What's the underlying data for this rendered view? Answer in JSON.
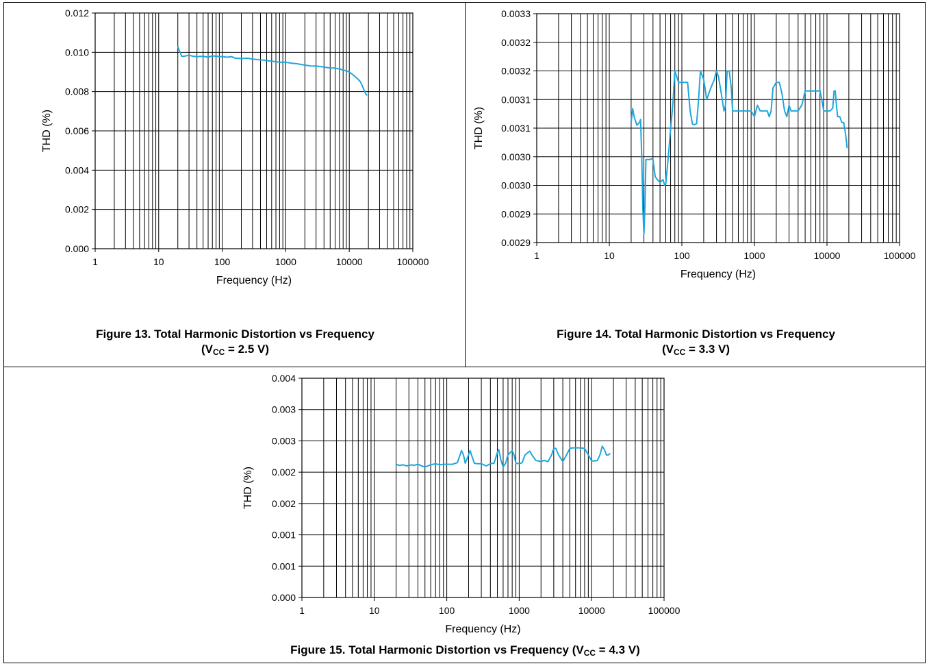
{
  "chart_data": [
    {
      "type": "line",
      "caption": {
        "prefix": "Figure 13. Total Harmonic Distortion vs Frequency",
        "vsym": "V",
        "vsub": "CC",
        "vval": " = 2.5 V"
      },
      "xlabel": "Frequency (Hz)",
      "ylabel": "THD (%)",
      "xscale": "log",
      "xlim": [
        1,
        100000
      ],
      "ylim": [
        0,
        0.012
      ],
      "xticks": [
        1,
        10,
        100,
        1000,
        10000,
        100000
      ],
      "xtick_labels": [
        "1",
        "10",
        "100",
        "1000",
        "10000",
        "100000"
      ],
      "ytick_labels": [
        "0.000",
        "0.002",
        "0.004",
        "0.006",
        "0.008",
        "0.010",
        "0.012"
      ],
      "grid": true,
      "line_color": "#1fa6dd",
      "series": [
        {
          "x": [
            20,
            21,
            23,
            25,
            30,
            35,
            40,
            50,
            60,
            70,
            80,
            90,
            100,
            120,
            140,
            160,
            200,
            250,
            300,
            400,
            500,
            600,
            800,
            1000,
            1200,
            1500,
            2000,
            2500,
            3000,
            4000,
            5000,
            6000,
            7000,
            8000,
            9000,
            10000,
            11000,
            12000,
            13000,
            14000,
            15000,
            16000,
            17000,
            18000,
            19000
          ],
          "y": [
            0.0103,
            0.0101,
            0.0098,
            0.0098,
            0.00985,
            0.0098,
            0.00978,
            0.0098,
            0.00975,
            0.00982,
            0.0098,
            0.00978,
            0.00978,
            0.00975,
            0.00978,
            0.0097,
            0.00968,
            0.0097,
            0.00965,
            0.00962,
            0.00958,
            0.00955,
            0.0095,
            0.0095,
            0.00945,
            0.00942,
            0.00935,
            0.0093,
            0.0093,
            0.00925,
            0.0092,
            0.0092,
            0.00915,
            0.0091,
            0.00905,
            0.009,
            0.0089,
            0.0088,
            0.0087,
            0.0086,
            0.0085,
            0.0083,
            0.0081,
            0.0079,
            0.0078
          ]
        }
      ]
    },
    {
      "type": "line",
      "caption": {
        "prefix": "Figure 14. Total Harmonic Distortion vs Frequency",
        "vsym": "V",
        "vsub": "CC",
        "vval": " = 3.3 V"
      },
      "xlabel": "Frequency (Hz)",
      "ylabel": "THD (%)",
      "xscale": "log",
      "xlim": [
        1,
        100000
      ],
      "ylim": [
        0.0029,
        0.0033
      ],
      "xticks": [
        1,
        10,
        100,
        1000,
        10000,
        100000
      ],
      "xtick_labels": [
        "1",
        "10",
        "100",
        "1000",
        "10000",
        "100000"
      ],
      "ytick_labels": [
        "0.0029",
        "0.0029",
        "0.0030",
        "0.0030",
        "0.0031",
        "0.0031",
        "0.0032",
        "0.0032",
        "0.0033"
      ],
      "grid": true,
      "line_color": "#1fa6dd",
      "series": [
        {
          "x": [
            20,
            21,
            22,
            24,
            26,
            27,
            28,
            29,
            30,
            31,
            32,
            35,
            38,
            40,
            43,
            46,
            50,
            55,
            58,
            60,
            65,
            70,
            75,
            80,
            85,
            90,
            100,
            120,
            130,
            140,
            150,
            160,
            170,
            180,
            200,
            220,
            250,
            280,
            300,
            320,
            350,
            380,
            400,
            420,
            450,
            480,
            500,
            520,
            550,
            600,
            700,
            800,
            900,
            1000,
            1100,
            1200,
            1400,
            1500,
            1600,
            1700,
            1800,
            2000,
            2200,
            2400,
            2600,
            2800,
            3000,
            3200,
            3500,
            4000,
            4500,
            5000,
            5500,
            6000,
            7000,
            8000,
            8500,
            9000,
            10000,
            11000,
            12000,
            12500,
            13000,
            13500,
            14000,
            15000,
            16000,
            17000,
            18000,
            19000
          ],
          "y": [
            0.00311,
            0.003134,
            0.00312,
            0.003105,
            0.00311,
            0.003115,
            0.00305,
            0.00296,
            0.002915,
            0.002965,
            0.003045,
            0.003045,
            0.003046,
            0.003045,
            0.003015,
            0.00301,
            0.003005,
            0.00301,
            0.003,
            0.003002,
            0.00305,
            0.0031,
            0.00314,
            0.0032,
            0.00319,
            0.00318,
            0.00318,
            0.00318,
            0.00313,
            0.003107,
            0.003106,
            0.003108,
            0.00315,
            0.0032,
            0.003185,
            0.00315,
            0.00317,
            0.003185,
            0.0032,
            0.00319,
            0.00316,
            0.00313,
            0.00314,
            0.0032,
            0.0032,
            0.00317,
            0.00313,
            0.00313,
            0.00313,
            0.00313,
            0.00313,
            0.00313,
            0.00313,
            0.00312,
            0.00314,
            0.00313,
            0.00313,
            0.00313,
            0.00312,
            0.00313,
            0.00317,
            0.00318,
            0.00318,
            0.00316,
            0.00313,
            0.00312,
            0.00314,
            0.00313,
            0.00313,
            0.00313,
            0.00314,
            0.003165,
            0.003165,
            0.003165,
            0.003165,
            0.003165,
            0.00315,
            0.00313,
            0.00313,
            0.00313,
            0.003135,
            0.003165,
            0.003165,
            0.00314,
            0.00312,
            0.00312,
            0.00311,
            0.00311,
            0.00309,
            0.003065
          ]
        }
      ]
    },
    {
      "type": "line",
      "caption": {
        "prefix": "Figure 15. Total Harmonic Distortion vs Frequency (",
        "vsym": "V",
        "vsub": "CC",
        "vval": " = 4.3 V)"
      },
      "xlabel": "Frequency (Hz)",
      "ylabel": "THD (%)",
      "xscale": "log",
      "xlim": [
        1,
        100000
      ],
      "ylim": [
        0,
        0.004
      ],
      "xticks": [
        1,
        10,
        100,
        1000,
        10000,
        100000
      ],
      "xtick_labels": [
        "1",
        "10",
        "100",
        "1000",
        "10000",
        "100000"
      ],
      "ytick_labels": [
        "0.000",
        "0.001",
        "0.001",
        "0.002",
        "0.002",
        "0.003",
        "0.003",
        "0.004"
      ],
      "grid": true,
      "line_color": "#1fa6dd",
      "series": [
        {
          "x": [
            20,
            22,
            25,
            28,
            30,
            33,
            35,
            40,
            45,
            50,
            60,
            70,
            80,
            90,
            100,
            120,
            140,
            160,
            170,
            180,
            200,
            210,
            220,
            240,
            260,
            300,
            350,
            400,
            450,
            500,
            520,
            560,
            600,
            650,
            700,
            800,
            850,
            900,
            1000,
            1100,
            1200,
            1400,
            1500,
            1700,
            2000,
            2200,
            2500,
            2800,
            3000,
            3200,
            3500,
            4000,
            4500,
            5000,
            5500,
            6000,
            7000,
            8000,
            9000,
            10000,
            11000,
            12000,
            13000,
            14000,
            15000,
            16000,
            17000,
            18000
          ],
          "y": [
            0.00243,
            0.00241,
            0.00242,
            0.0024,
            0.00241,
            0.00242,
            0.00241,
            0.00243,
            0.0024,
            0.00238,
            0.00242,
            0.00244,
            0.00242,
            0.00243,
            0.00243,
            0.00243,
            0.00246,
            0.00268,
            0.0026,
            0.00245,
            0.0026,
            0.00268,
            0.0026,
            0.00245,
            0.00244,
            0.00244,
            0.0024,
            0.00244,
            0.00245,
            0.00265,
            0.0027,
            0.0025,
            0.00238,
            0.00245,
            0.0026,
            0.00268,
            0.0026,
            0.00245,
            0.00244,
            0.00246,
            0.0026,
            0.00267,
            0.0026,
            0.0025,
            0.00248,
            0.0025,
            0.00248,
            0.0026,
            0.00272,
            0.00272,
            0.0026,
            0.00248,
            0.0026,
            0.00272,
            0.00273,
            0.00273,
            0.00273,
            0.00272,
            0.0026,
            0.00249,
            0.00249,
            0.0025,
            0.0026,
            0.00276,
            0.0027,
            0.0026,
            0.0026,
            0.00263
          ]
        }
      ]
    }
  ]
}
